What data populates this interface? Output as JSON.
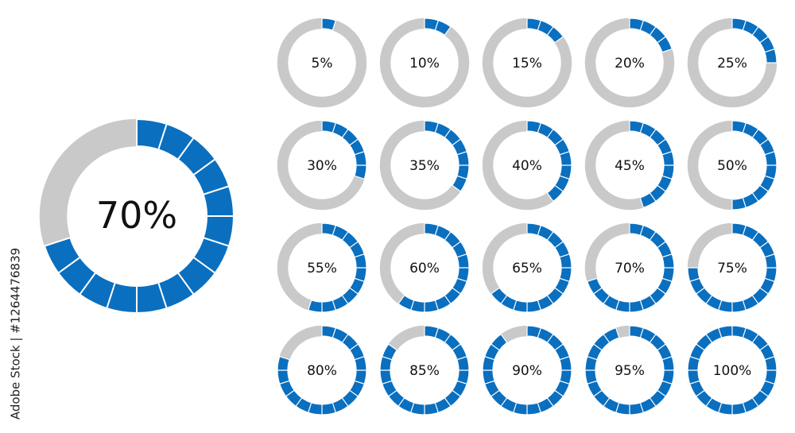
{
  "chart_data": [
    {
      "type": "donut",
      "values": [
        70
      ],
      "value_labels": [
        "70%"
      ],
      "segments": 20,
      "color": "#0a6fbf",
      "track_color": "#c9c9c9"
    },
    {
      "type": "donut-grid",
      "values": [
        5,
        10,
        15,
        20,
        25,
        30,
        35,
        40,
        45,
        50,
        55,
        60,
        65,
        70,
        75,
        80,
        85,
        90,
        95,
        100
      ],
      "value_labels": [
        "5%",
        "10%",
        "15%",
        "20%",
        "25%",
        "30%",
        "35%",
        "40%",
        "45%",
        "50%",
        "55%",
        "60%",
        "65%",
        "70%",
        "75%",
        "80%",
        "85%",
        "90%",
        "95%",
        "100%"
      ],
      "segments": 20,
      "columns": 5,
      "color": "#0a6fbf",
      "track_color": "#c9c9c9"
    }
  ],
  "watermark": "Adobe Stock | #1264476839"
}
